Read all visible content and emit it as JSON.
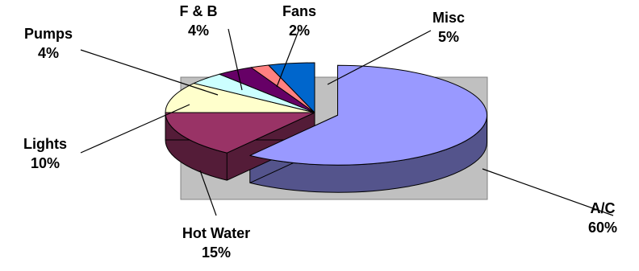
{
  "chart_data": {
    "type": "pie",
    "style": "3d-exploded",
    "plot_background": "#c0c0c0",
    "slices": [
      {
        "label": "A/C",
        "value": 60,
        "pct": "60%",
        "color": "#9999ff"
      },
      {
        "label": "Hot Water",
        "value": 15,
        "pct": "15%",
        "color": "#993366"
      },
      {
        "label": "Lights",
        "value": 10,
        "pct": "10%",
        "color": "#ffffcc"
      },
      {
        "label": "Pumps",
        "value": 4,
        "pct": "4%",
        "color": "#ccffff"
      },
      {
        "label": "F & B",
        "value": 4,
        "pct": "4%",
        "color": "#660066"
      },
      {
        "label": "Fans",
        "value": 2,
        "pct": "2%",
        "color": "#ff8080"
      },
      {
        "label": "Misc",
        "value": 5,
        "pct": "5%",
        "color": "#0066cc"
      }
    ]
  }
}
